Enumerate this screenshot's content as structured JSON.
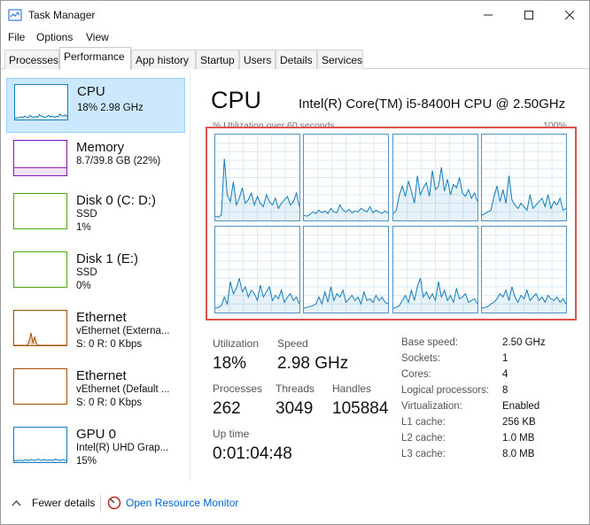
{
  "window": {
    "title": "Task Manager",
    "icons": {
      "app": "task-manager-icon",
      "minimize": "minimize-icon",
      "maximize": "maximize-icon",
      "close": "close-icon"
    }
  },
  "menu": [
    "File",
    "Options",
    "View"
  ],
  "tabs": [
    "Processes",
    "Performance",
    "App history",
    "Startup",
    "Users",
    "Details",
    "Services"
  ],
  "active_tab": "Performance",
  "sidebar": [
    {
      "title": "CPU",
      "sub1": "18% 2.98 GHz",
      "sub2": "",
      "color": "#117dbb"
    },
    {
      "title": "Memory",
      "sub1": "8.7/39.8 GB (22%)",
      "sub2": "",
      "color": "#8b12ae"
    },
    {
      "title": "Disk 0 (C: D:)",
      "sub1": "SSD",
      "sub2": "1%",
      "color": "#4da60c"
    },
    {
      "title": "Disk 1 (E:)",
      "sub1": "SSD",
      "sub2": "0%",
      "color": "#4da60c"
    },
    {
      "title": "Ethernet",
      "sub1": "vEthernet (Externa...",
      "sub2": "S: 0 R: 0 Kbps",
      "color": "#a74f01"
    },
    {
      "title": "Ethernet",
      "sub1": "vEthernet (Default ...",
      "sub2": "S: 0 R: 0 Kbps",
      "color": "#a74f01"
    },
    {
      "title": "GPU 0",
      "sub1": "Intel(R) UHD Grap...",
      "sub2": "15%",
      "color": "#117dbb"
    }
  ],
  "main": {
    "title": "CPU",
    "model": "Intel(R) Core(TM) i5-8400H CPU @ 2.50GHz",
    "util_caption": "% Utilization over 60 seconds",
    "util_max": "100%",
    "stats": {
      "utilization_label": "Utilization",
      "utilization": "18%",
      "speed_label": "Speed",
      "speed": "2.98 GHz",
      "processes_label": "Processes",
      "processes": "262",
      "threads_label": "Threads",
      "threads": "3049",
      "handles_label": "Handles",
      "handles": "105884",
      "uptime_label": "Up time",
      "uptime": "0:01:04:48"
    },
    "specs": [
      {
        "label": "Base speed:",
        "value": "2.50 GHz"
      },
      {
        "label": "Sockets:",
        "value": "1"
      },
      {
        "label": "Cores:",
        "value": "4"
      },
      {
        "label": "Logical processors:",
        "value": "8"
      },
      {
        "label": "Virtualization:",
        "value": "Enabled"
      },
      {
        "label": "L1 cache:",
        "value": "256 KB"
      },
      {
        "label": "L2 cache:",
        "value": "1.0 MB"
      },
      {
        "label": "L3 cache:",
        "value": "8.0 MB"
      }
    ],
    "cpu_series": [
      [
        5,
        4,
        6,
        72,
        30,
        22,
        45,
        18,
        26,
        38,
        20,
        24,
        32,
        18,
        28,
        20,
        16,
        30,
        22,
        18,
        26,
        14,
        20,
        24,
        28,
        18,
        22,
        32,
        16
      ],
      [
        6,
        5,
        7,
        10,
        8,
        12,
        9,
        11,
        8,
        14,
        10,
        9,
        18,
        12,
        10,
        13,
        9,
        11,
        10,
        14,
        12,
        10,
        16,
        9,
        12,
        10,
        8,
        11,
        9
      ],
      [
        8,
        12,
        30,
        40,
        28,
        46,
        34,
        20,
        52,
        30,
        38,
        44,
        28,
        58,
        36,
        40,
        62,
        34,
        48,
        30,
        42,
        38,
        50,
        32,
        28,
        36,
        26,
        32,
        22
      ],
      [
        6,
        8,
        10,
        12,
        28,
        40,
        22,
        36,
        20,
        52,
        24,
        18,
        14,
        20,
        16,
        12,
        30,
        14,
        18,
        22,
        26,
        16,
        30,
        14,
        22,
        18,
        26,
        12,
        14
      ],
      [
        5,
        6,
        8,
        18,
        10,
        36,
        22,
        28,
        40,
        24,
        30,
        18,
        26,
        22,
        14,
        32,
        18,
        24,
        30,
        14,
        20,
        16,
        26,
        12,
        18,
        22,
        14,
        18,
        10
      ],
      [
        5,
        6,
        7,
        8,
        10,
        18,
        10,
        24,
        12,
        30,
        14,
        22,
        18,
        26,
        12,
        16,
        20,
        14,
        18,
        10,
        24,
        14,
        16,
        12,
        20,
        14,
        18,
        12,
        10
      ],
      [
        5,
        6,
        8,
        14,
        20,
        12,
        26,
        14,
        30,
        40,
        18,
        24,
        16,
        22,
        14,
        36,
        18,
        26,
        14,
        20,
        12,
        28,
        16,
        18,
        22,
        12,
        14,
        16,
        10
      ],
      [
        5,
        6,
        7,
        10,
        12,
        16,
        22,
        18,
        26,
        14,
        30,
        18,
        12,
        20,
        16,
        26,
        14,
        18,
        22,
        14,
        18,
        12,
        20,
        16,
        14,
        18,
        12,
        16,
        10
      ]
    ]
  },
  "sidebar_thumbs": {
    "cpu": [
      5,
      4,
      6,
      8,
      5,
      10,
      7,
      6,
      12,
      8,
      6,
      9,
      7,
      14,
      10,
      8,
      6,
      9,
      12,
      8,
      10,
      7,
      9,
      8,
      16,
      12,
      10,
      14,
      8
    ],
    "ethernet1": [
      0,
      0,
      0,
      0,
      0,
      0,
      0,
      0,
      12,
      36,
      8,
      24,
      4,
      0,
      0,
      0,
      0,
      0,
      0,
      0,
      0,
      0,
      0,
      0,
      0,
      0,
      0,
      0,
      0
    ],
    "gpu": [
      4,
      5,
      4,
      6,
      5,
      4,
      7,
      6,
      5,
      8,
      6,
      5,
      7,
      9,
      6,
      5,
      8,
      6,
      5,
      7,
      6,
      5,
      9,
      7,
      6,
      5,
      8,
      6,
      5
    ],
    "memory_level": 22
  },
  "footer": {
    "fewer_details": "Fewer details",
    "open_monitor": "Open Resource Monitor"
  }
}
